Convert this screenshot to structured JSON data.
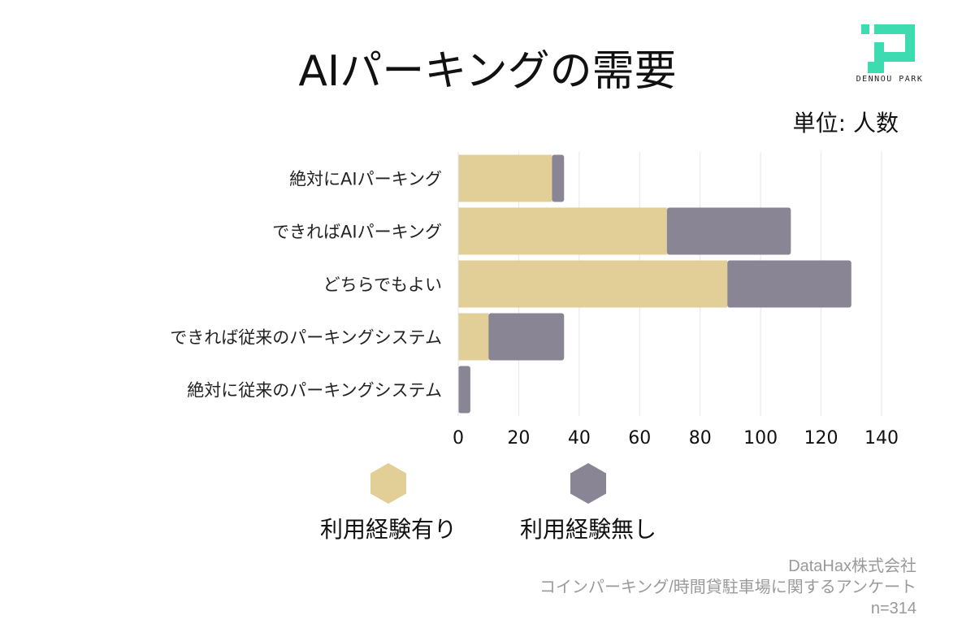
{
  "title": "AIパーキングの需要",
  "unit_label": "単位: 人数",
  "logo": {
    "name": "DENNOU PARK",
    "color": "#3ddbb0"
  },
  "colors": {
    "used": "#e2cf98",
    "not_used": "#8a8594",
    "grid": "#e6e6e6"
  },
  "legend": [
    {
      "label": "利用経験有り",
      "color": "#e2cf98"
    },
    {
      "label": "利用経験無し",
      "color": "#8a8594"
    }
  ],
  "source": {
    "company": "DataHax株式会社",
    "survey": "コインパーキング/時間貸駐車場に関するアンケート",
    "n": "n=314"
  },
  "chart_data": {
    "type": "bar",
    "orientation": "horizontal",
    "stacked": true,
    "categories": [
      "絶対にAIパーキング",
      "できればAIパーキング",
      "どちらでもよい",
      "できれば従来のパーキングシステム",
      "絶対に従来のパーキングシステム"
    ],
    "series": [
      {
        "name": "利用経験有り",
        "values": [
          31,
          69,
          89,
          10,
          0
        ]
      },
      {
        "name": "利用経験無し",
        "values": [
          4,
          41,
          41,
          25,
          4
        ]
      }
    ],
    "xlim": [
      0,
      140
    ],
    "xticks": [
      0,
      20,
      40,
      60,
      80,
      100,
      120,
      140
    ],
    "grid": true
  }
}
